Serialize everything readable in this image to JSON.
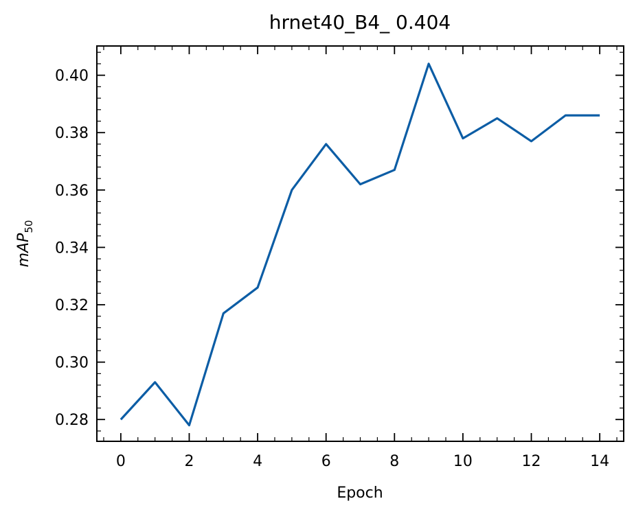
{
  "chart_data": {
    "type": "line",
    "title": "hrnet40_B4_ 0.404",
    "xlabel": "Epoch",
    "ylabel": {
      "main": "mAP",
      "subscript": "50"
    },
    "x": [
      0,
      1,
      2,
      3,
      4,
      5,
      6,
      7,
      8,
      9,
      10,
      11,
      12,
      13,
      14
    ],
    "series": [
      {
        "values": [
          0.28,
          0.293,
          0.278,
          0.317,
          0.326,
          0.36,
          0.376,
          0.362,
          0.367,
          0.404,
          0.378,
          0.385,
          0.377,
          0.386,
          0.386
        ],
        "color": "#0C5DA5"
      }
    ],
    "xlim": [
      -0.7,
      14.7
    ],
    "ylim": [
      0.2724,
      0.4102
    ],
    "xticks": [
      "0",
      "2",
      "4",
      "6",
      "8",
      "10",
      "12",
      "14"
    ],
    "yticks": [
      "0.28",
      "0.30",
      "0.32",
      "0.34",
      "0.36",
      "0.38",
      "0.40"
    ],
    "grid": false,
    "legend": "none"
  }
}
